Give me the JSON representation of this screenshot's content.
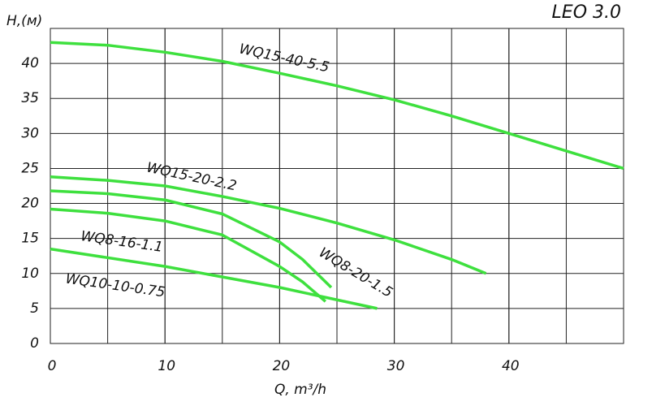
{
  "chart_data": {
    "type": "line",
    "title": "LEO 3.0",
    "x_label": "Q, m³/h",
    "y_label": "H,(м)",
    "xlim": [
      0,
      50
    ],
    "ylim": [
      0,
      45
    ],
    "xticks": [
      0,
      10,
      20,
      30,
      40
    ],
    "yticks": [
      0,
      5,
      10,
      15,
      20,
      25,
      30,
      35,
      40
    ],
    "grid": true,
    "series": [
      {
        "name": "WQ15-40-5.5",
        "color": "#3ee03e",
        "x": [
          0,
          5,
          10,
          15,
          20,
          25,
          30,
          35,
          40,
          45,
          50
        ],
        "values": [
          43,
          42.6,
          41.6,
          40.3,
          38.6,
          36.8,
          34.8,
          32.5,
          30,
          27.5,
          25
        ]
      },
      {
        "name": "WQ15-20-2.2",
        "color": "#3ee03e",
        "x": [
          0,
          5,
          10,
          15,
          20,
          25,
          30,
          35,
          38
        ],
        "values": [
          23.8,
          23.3,
          22.5,
          21,
          19.3,
          17.2,
          14.8,
          12,
          10
        ]
      },
      {
        "name": "WQ8-20-1.5",
        "color": "#3ee03e",
        "x": [
          0,
          5,
          10,
          15,
          20,
          22,
          24.5
        ],
        "values": [
          21.8,
          21.4,
          20.5,
          18.5,
          14.5,
          12,
          8
        ]
      },
      {
        "name": "WQ8-16-1.1",
        "color": "#3ee03e",
        "x": [
          0,
          5,
          10,
          15,
          20,
          22,
          24
        ],
        "values": [
          19.2,
          18.6,
          17.5,
          15.5,
          11,
          8.8,
          6
        ]
      },
      {
        "name": "WQ10-10-0.75",
        "color": "#3ee03e",
        "x": [
          0,
          10,
          20,
          28.5
        ],
        "values": [
          13.5,
          11,
          8,
          5
        ]
      }
    ]
  }
}
